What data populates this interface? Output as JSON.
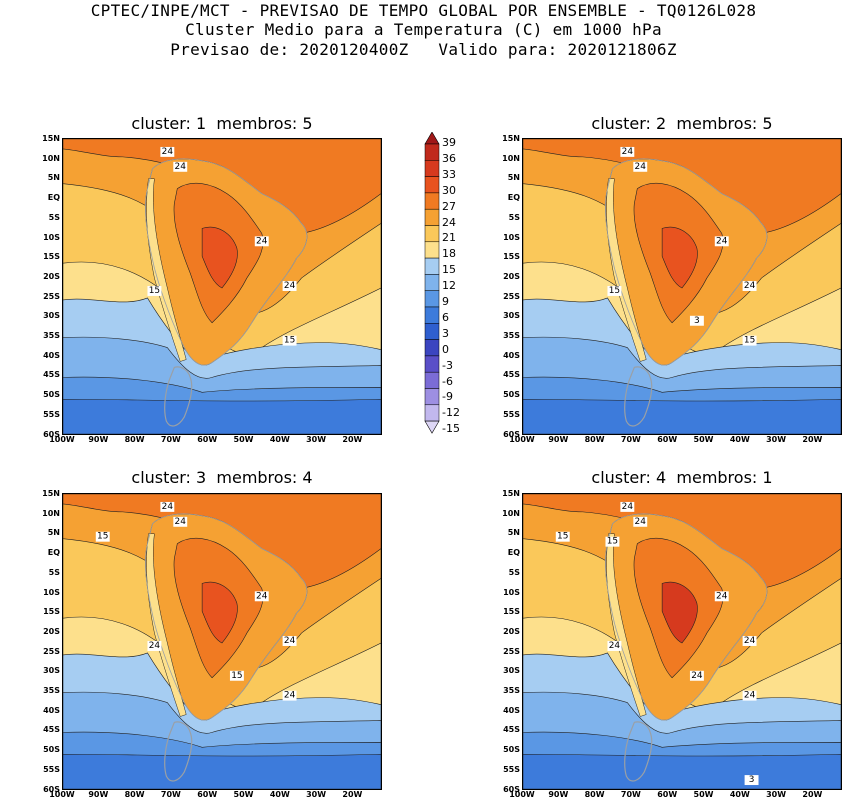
{
  "title": {
    "line1": "CPTEC/INPE/MCT - PREVISAO DE TEMPO GLOBAL POR ENSEMBLE - TQ0126L028",
    "line2": "Cluster Medio para a Temperatura (C) em 1000 hPa",
    "line3": "Previsao de: 2020120400Z   Valido para: 2020121806Z"
  },
  "panels": [
    {
      "title": "cluster: 1  membros: 5",
      "contour_labels": [
        "24",
        "24",
        "24",
        "24",
        "15",
        "15"
      ]
    },
    {
      "title": "cluster: 2  membros: 5",
      "contour_labels": [
        "24",
        "24",
        "24",
        "24",
        "15",
        "15",
        "3"
      ]
    },
    {
      "title": "cluster: 3  membros: 4",
      "contour_labels": [
        "24",
        "24",
        "24",
        "24",
        "24",
        "24",
        "15",
        "15"
      ]
    },
    {
      "title": "cluster: 4  membros: 1",
      "contour_labels": [
        "24",
        "24",
        "24",
        "24",
        "24",
        "24",
        "24",
        "15",
        "15",
        "3"
      ]
    }
  ],
  "lat_labels": [
    "15N",
    "10N",
    "5N",
    "EQ",
    "5S",
    "10S",
    "15S",
    "20S",
    "25S",
    "30S",
    "35S",
    "40S",
    "45S",
    "50S",
    "55S",
    "60S"
  ],
  "lon_labels": [
    "100W",
    "90W",
    "80W",
    "70W",
    "60W",
    "50W",
    "40W",
    "30W",
    "20W"
  ],
  "colorbar": {
    "labels": [
      "39",
      "36",
      "33",
      "30",
      "27",
      "24",
      "21",
      "18",
      "15",
      "12",
      "9",
      "6",
      "3",
      "0",
      "-3",
      "-6",
      "-9",
      "-12",
      "-15"
    ],
    "colors": [
      "#a01818",
      "#c02a1c",
      "#d63a1e",
      "#e8531f",
      "#f07a22",
      "#f5a133",
      "#fac85a",
      "#fde08c",
      "#a6cdf2",
      "#7fb3ec",
      "#5a97e4",
      "#3d7bdb",
      "#2f5fcf",
      "#3b45c0",
      "#5a4fc8",
      "#7b6cd6",
      "#9d8fe2",
      "#c2b8ee",
      "#ddd6f6"
    ]
  }
}
